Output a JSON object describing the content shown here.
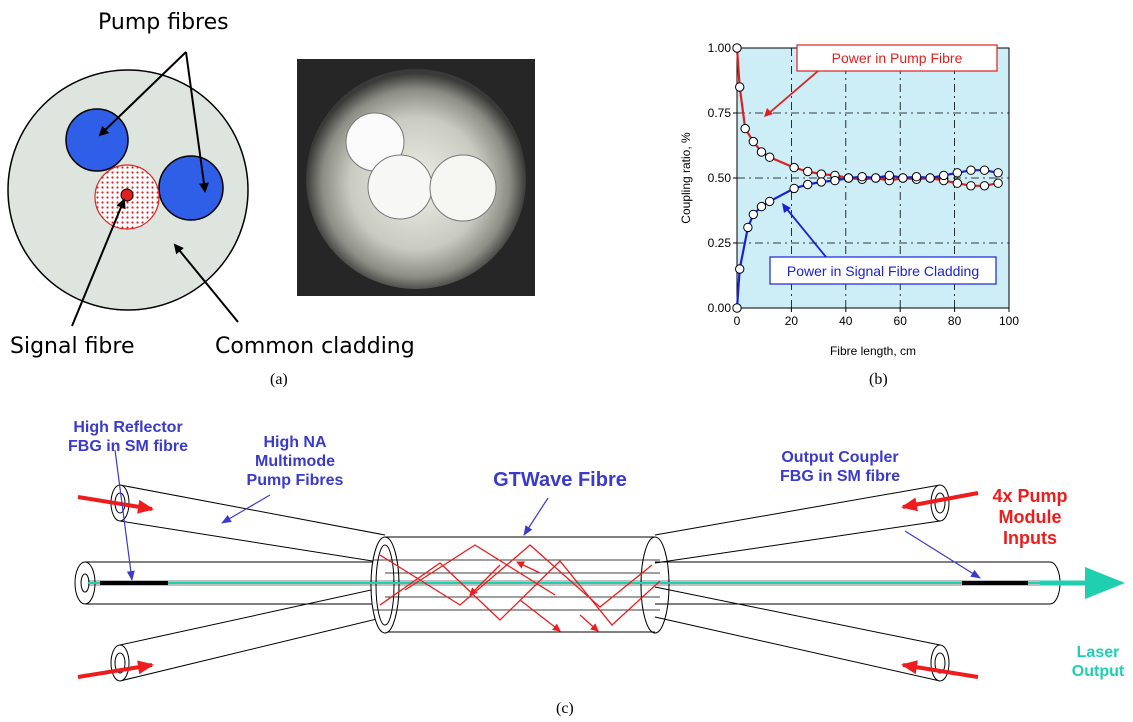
{
  "panel_a": {
    "pump_label": "Pump fibres",
    "signal_label": "Signal fibre",
    "cladding_label": "Common cladding",
    "caption": "(a)"
  },
  "panel_b": {
    "caption": "(b)",
    "legend_pump": "Power in Pump Fibre",
    "legend_signal": "Power in Signal Fibre Cladding"
  },
  "panel_c": {
    "caption": "(c)",
    "hr_label": [
      "High Reflector",
      "FBG in SM fibre"
    ],
    "pump_fibres_label": [
      "High NA",
      "Multimode",
      "Pump Fibres"
    ],
    "gtwave_label": "GTWave Fibre",
    "oc_label": [
      "Output Coupler",
      "FBG in SM fibre"
    ],
    "pump_inputs_label": [
      "4x Pump",
      "Module",
      "Inputs"
    ],
    "laser_label": [
      "Laser",
      "Output"
    ]
  },
  "colors": {
    "pump_blue": "#2e5fe6",
    "signal_red": "#e02020",
    "cladding": "#dde5de",
    "plot_bg": "#cdeef6",
    "pump_series": "#e02020",
    "signal_series": "#1a22d6",
    "laser_cyan": "#1fcfb0"
  },
  "chart_data": {
    "type": "line",
    "xlabel": "Fibre length, cm",
    "ylabel": "Coupling ratio, %",
    "xlim": [
      0,
      100
    ],
    "ylim": [
      0,
      1
    ],
    "xticks": [
      "0",
      "20",
      "40",
      "60",
      "80",
      "100"
    ],
    "yticks": [
      "0.00",
      "0.25",
      "0.50",
      "0.75",
      "1.00"
    ],
    "grid": true,
    "series": [
      {
        "name": "Power in Pump Fibre",
        "color": "#e02020",
        "x": [
          0,
          1,
          3,
          6,
          9,
          12,
          21,
          26,
          31,
          36,
          41,
          46,
          51,
          56,
          61,
          66,
          71,
          76,
          81,
          86,
          91,
          96
        ],
        "y": [
          1.0,
          0.85,
          0.69,
          0.64,
          0.6,
          0.58,
          0.54,
          0.525,
          0.515,
          0.51,
          0.5,
          0.495,
          0.5,
          0.49,
          0.5,
          0.495,
          0.5,
          0.49,
          0.48,
          0.47,
          0.47,
          0.48
        ]
      },
      {
        "name": "Power in Signal Fibre Cladding",
        "color": "#1a22d6",
        "x": [
          0,
          1,
          4,
          6,
          9,
          12,
          21,
          26,
          31,
          36,
          41,
          46,
          51,
          56,
          61,
          66,
          71,
          76,
          81,
          86,
          91,
          96
        ],
        "y": [
          0.0,
          0.15,
          0.31,
          0.36,
          0.39,
          0.41,
          0.46,
          0.475,
          0.485,
          0.49,
          0.5,
          0.505,
          0.5,
          0.51,
          0.5,
          0.505,
          0.5,
          0.51,
          0.52,
          0.53,
          0.53,
          0.52
        ]
      }
    ]
  }
}
